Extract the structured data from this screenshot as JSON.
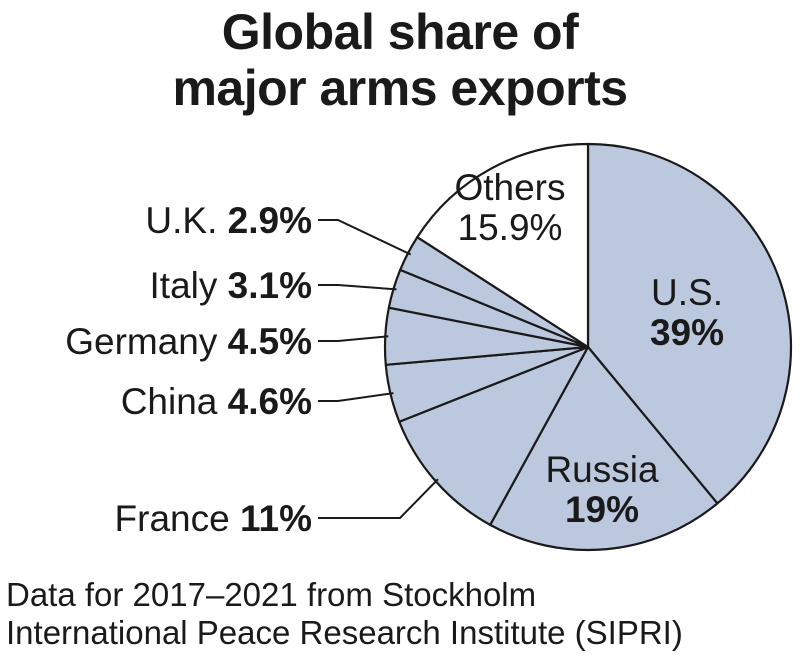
{
  "title_line1": "Global share of",
  "title_line2": "major arms exports",
  "source_line1": "Data for 2017–2021 from Stockholm",
  "source_line2": "International Peace Research Institute (SIPRI)",
  "colors": {
    "slice": "#bcc8de",
    "others": "#ffffff",
    "stroke": "#1a1a1a"
  },
  "chart_data": {
    "type": "pie",
    "unit": "%",
    "slices": [
      {
        "name": "U.S.",
        "value": 39,
        "label": "39%"
      },
      {
        "name": "Russia",
        "value": 19,
        "label": "19%"
      },
      {
        "name": "France",
        "value": 11,
        "label": "11%"
      },
      {
        "name": "China",
        "value": 4.6,
        "label": "4.6%"
      },
      {
        "name": "Germany",
        "value": 4.5,
        "label": "4.5%"
      },
      {
        "name": "Italy",
        "value": 3.1,
        "label": "3.1%"
      },
      {
        "name": "U.K.",
        "value": 2.9,
        "label": "2.9%"
      },
      {
        "name": "Others",
        "value": 15.9,
        "label": "15.9%"
      }
    ]
  }
}
